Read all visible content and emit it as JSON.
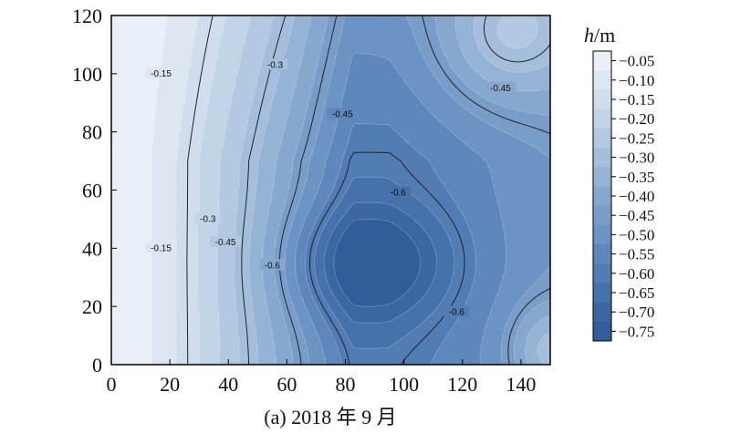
{
  "chart_data": {
    "type": "heatmap",
    "subtype": "filled-contour",
    "caption": "(a) 2018 年 9 月",
    "xlim": [
      0,
      150
    ],
    "ylim": [
      0,
      120
    ],
    "xticks": [
      0,
      20,
      40,
      60,
      80,
      100,
      120,
      140
    ],
    "yticks": [
      0,
      20,
      40,
      60,
      80,
      100,
      120
    ],
    "colorbar": {
      "title_italic": "h",
      "title_unit": "/m",
      "levels": [
        "−0.05",
        "−0.10",
        "−0.15",
        "−0.20",
        "−0.25",
        "−0.30",
        "−0.35",
        "−0.40",
        "−0.45",
        "−0.50",
        "−0.55",
        "−0.60",
        "−0.65",
        "−0.70",
        "−0.75"
      ],
      "colors": [
        "#e9f0f8",
        "#dce7f2",
        "#cfddec",
        "#c2d4e7",
        "#b3c9e1",
        "#a4bedb",
        "#95b3d5",
        "#86a8cf",
        "#789dc9",
        "#6b93c3",
        "#5e88bc",
        "#527db4",
        "#4672ab",
        "#3b67a2",
        "#315d99"
      ]
    },
    "contour_labels": [
      {
        "text": "-0.15",
        "x": 17,
        "y": 100
      },
      {
        "text": "-0.15",
        "x": 17,
        "y": 40
      },
      {
        "text": "-0.3",
        "x": 56,
        "y": 103
      },
      {
        "text": "-0.3",
        "x": 33,
        "y": 50
      },
      {
        "text": "-0.45",
        "x": 39,
        "y": 42
      },
      {
        "text": "-0.45",
        "x": 79,
        "y": 86
      },
      {
        "text": "-0.45",
        "x": 133,
        "y": 95
      },
      {
        "text": "-0.6",
        "x": 98,
        "y": 59
      },
      {
        "text": "-0.6",
        "x": 55,
        "y": 34
      },
      {
        "text": "-0.6",
        "x": 118,
        "y": 18
      }
    ]
  }
}
